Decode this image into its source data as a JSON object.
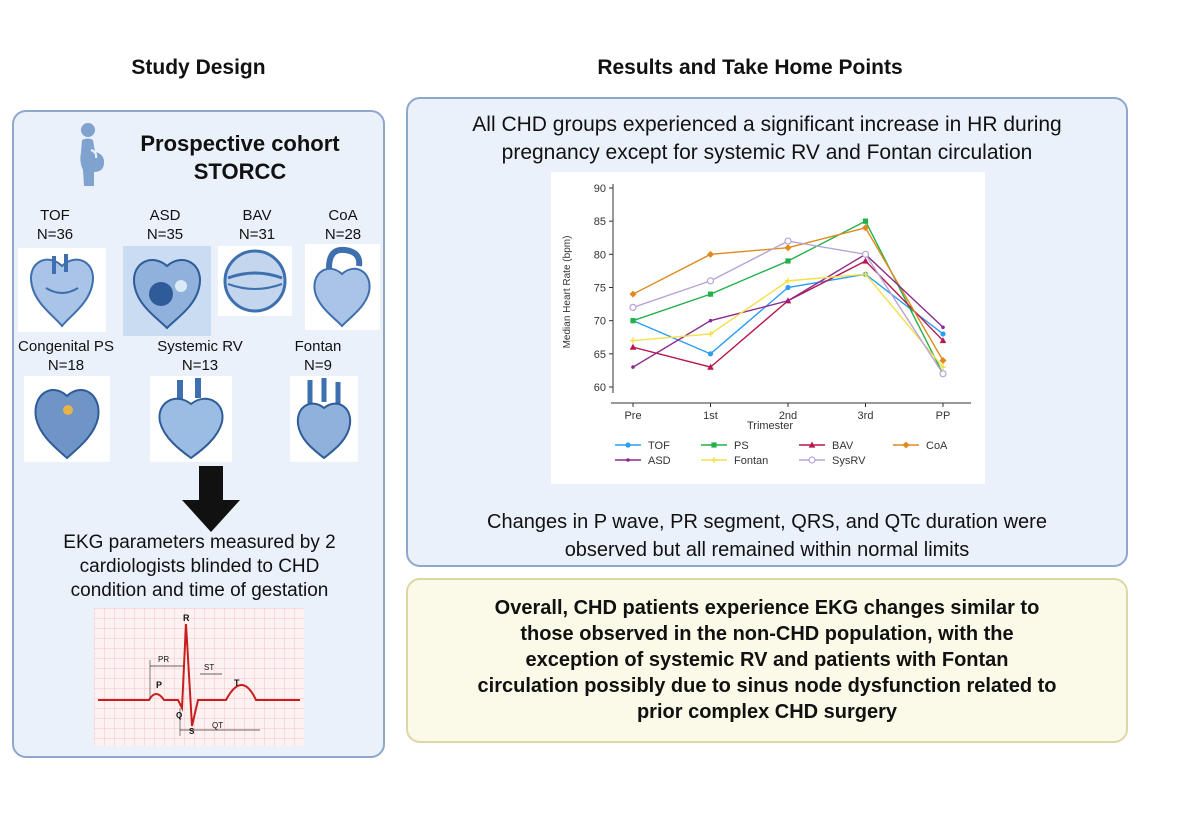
{
  "headers": {
    "study_design": "Study Design",
    "results": "Results and Take Home Points"
  },
  "study": {
    "cohort_line1": "Prospective cohort",
    "cohort_line2": "STORCC",
    "groups": [
      {
        "name": "TOF",
        "n": "N=36"
      },
      {
        "name": "ASD",
        "n": "N=35"
      },
      {
        "name": "BAV",
        "n": "N=31"
      },
      {
        "name": "CoA",
        "n": "N=28"
      },
      {
        "name": "Congenital PS",
        "n": "N=18"
      },
      {
        "name": "Systemic RV",
        "n": "N=13"
      },
      {
        "name": "Fontan",
        "n": "N=9"
      }
    ],
    "ekg_text_line1": "EKG parameters measured by 2",
    "ekg_text_line2": "cardiologists blinded to CHD",
    "ekg_text_line3": "condition and time of gestation",
    "ekg_labels": {
      "R": "R",
      "P": "P",
      "Q": "Q",
      "S": "S",
      "T": "T",
      "PR": "PR",
      "ST": "ST",
      "QT": "QT"
    }
  },
  "results": {
    "line1": "All CHD groups experienced a significant increase in HR during",
    "line2": "pregnancy except for systemic RV and Fontan circulation",
    "changes_line1": "Changes in P wave, PR segment, QRS, and QTc duration were",
    "changes_line2": "observed but all remained within normal limits"
  },
  "overall": {
    "line1": "Overall, CHD patients experience EKG changes similar to",
    "line2": "those observed in the non-CHD population, with the",
    "line3": "exception of systemic RV and patients with Fontan",
    "line4": "circulation possibly due to sinus node dysfunction related to",
    "line5": "prior complex CHD surgery"
  },
  "chart_data": {
    "type": "line",
    "x": [
      "Pre",
      "1st",
      "2nd",
      "3rd",
      "PP"
    ],
    "xlabel": "Trimester",
    "ylabel": "Median Heart Rate (bpm)",
    "ylim": [
      60,
      90
    ],
    "yticks": [
      60,
      65,
      70,
      75,
      80,
      85,
      90
    ],
    "legend_position": "bottom",
    "series": [
      {
        "name": "TOF",
        "color": "#2a9df4",
        "marker": "circle",
        "values": [
          70,
          65,
          75,
          77,
          68
        ]
      },
      {
        "name": "PS",
        "color": "#22b04a",
        "marker": "square",
        "values": [
          70,
          74,
          79,
          85,
          62
        ]
      },
      {
        "name": "BAV",
        "color": "#b5174f",
        "marker": "triangle",
        "values": [
          66,
          63,
          73,
          79,
          67
        ]
      },
      {
        "name": "CoA",
        "color": "#e08a1e",
        "marker": "diamond",
        "values": [
          74,
          80,
          81,
          84,
          64
        ]
      },
      {
        "name": "ASD",
        "color": "#8a2a8e",
        "marker": "dot",
        "values": [
          63,
          70,
          73,
          80,
          69
        ]
      },
      {
        "name": "Fontan",
        "color": "#f4e04a",
        "marker": "plus",
        "values": [
          67,
          68,
          76,
          77,
          63
        ]
      },
      {
        "name": "SysRV",
        "color": "#b6a4d6",
        "marker": "open-circle",
        "values": [
          72,
          76,
          82,
          80,
          62
        ]
      }
    ]
  }
}
